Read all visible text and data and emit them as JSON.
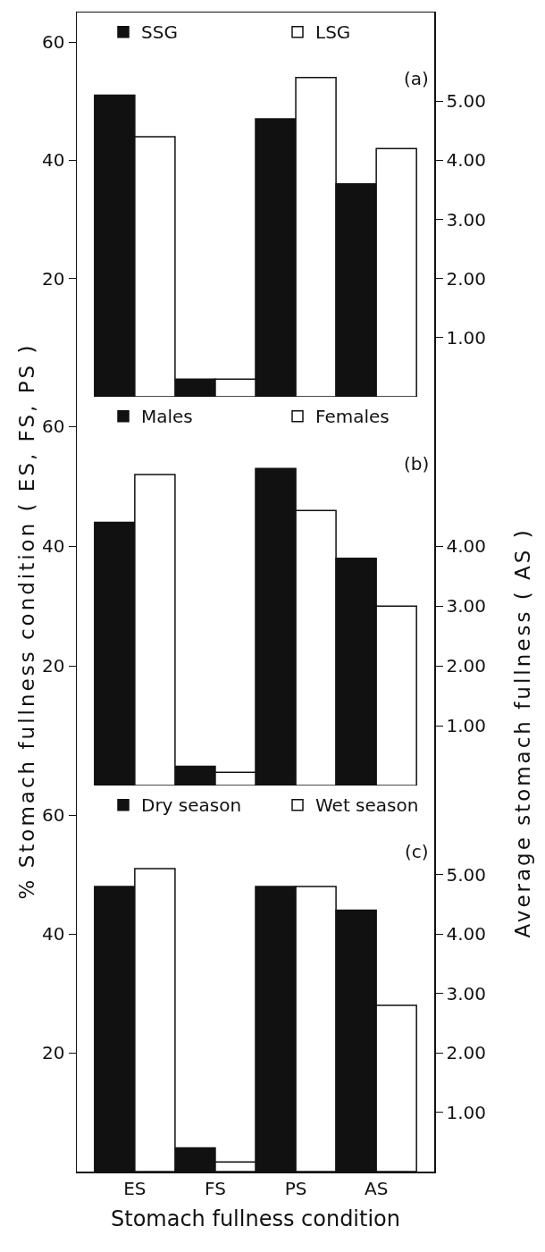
{
  "chart_data": [
    {
      "type": "bar",
      "categories": [
        null,
        null,
        null,
        null
      ],
      "annotations": [
        "(a)"
      ],
      "legend": "top left",
      "tick_labels": "y",
      "ylim": [
        0,
        65
      ],
      "yticks": [
        20,
        40,
        60
      ],
      "y2lim": [
        0,
        6.5
      ],
      "y2ticks": [
        {
          "value": 1,
          "label": "1.00"
        },
        {
          "value": 2,
          "label": "2.00"
        },
        {
          "value": 3,
          "label": "3.00"
        },
        {
          "value": 4,
          "label": "4.00"
        },
        {
          "value": 5,
          "label": "5.00"
        }
      ],
      "series": [
        {
          "name": "SSG",
          "color": "#111111",
          "values": [
            51,
            3,
            47,
            null
          ]
        },
        {
          "name": "LSG",
          "color": "#ffffff",
          "values": [
            44,
            3,
            54,
            null
          ]
        },
        {
          "color": "#111111",
          "axis": "y2",
          "values": [
            null,
            null,
            null,
            3.6
          ]
        },
        {
          "color": "#ffffff",
          "axis": "y2",
          "values": [
            null,
            null,
            null,
            4.2
          ]
        }
      ]
    },
    {
      "type": "bar",
      "categories": [
        null,
        null,
        null,
        null
      ],
      "annotations": [
        "(b)"
      ],
      "legend": "top left",
      "tick_labels": "y",
      "ylabel": "% Stomach fullness condition ( ES, FS, PS )",
      "y2label": "Average stomach fullness ( AS )",
      "ylim": [
        0,
        65
      ],
      "yticks": [
        20,
        40,
        60
      ],
      "y2lim": [
        0,
        6.5
      ],
      "y2ticks": [
        {
          "value": 1,
          "label": "1.00"
        },
        {
          "value": 2,
          "label": "2.00"
        },
        {
          "value": 3,
          "label": "3.00"
        },
        {
          "value": 4,
          "label": "4.00"
        }
      ],
      "series": [
        {
          "name": "Males",
          "color": "#111111",
          "values": [
            44,
            3.2,
            53,
            null
          ]
        },
        {
          "name": "Females",
          "color": "#ffffff",
          "values": [
            52,
            2.2,
            46,
            null
          ]
        },
        {
          "color": "#111111",
          "axis": "y2",
          "values": [
            null,
            null,
            null,
            3.8
          ]
        },
        {
          "color": "#ffffff",
          "axis": "y2",
          "values": [
            null,
            null,
            null,
            3.0
          ]
        }
      ]
    },
    {
      "type": "bar",
      "categories": [
        "ES",
        "FS",
        "PS",
        "AS"
      ],
      "annotations": [
        "(c)"
      ],
      "legend": "top left",
      "xlabel": "Stomach fullness condition",
      "ylim": [
        0,
        65
      ],
      "yticks": [
        20,
        40,
        60
      ],
      "y2lim": [
        0,
        6.5
      ],
      "y2ticks": [
        {
          "value": 1,
          "label": "1.00"
        },
        {
          "value": 2,
          "label": "2.00"
        },
        {
          "value": 3,
          "label": "3.00"
        },
        {
          "value": 4,
          "label": "4.00"
        },
        {
          "value": 5,
          "label": "5.00"
        }
      ],
      "series": [
        {
          "name": "Dry season",
          "color": "#111111",
          "values": [
            48,
            4,
            48,
            null
          ]
        },
        {
          "name": "Wet season",
          "color": "#ffffff",
          "values": [
            51,
            1.6,
            48,
            null
          ]
        },
        {
          "color": "#111111",
          "axis": "y2",
          "values": [
            null,
            null,
            null,
            4.4
          ]
        },
        {
          "color": "#ffffff",
          "axis": "y2",
          "values": [
            null,
            null,
            null,
            2.8
          ]
        }
      ]
    }
  ]
}
